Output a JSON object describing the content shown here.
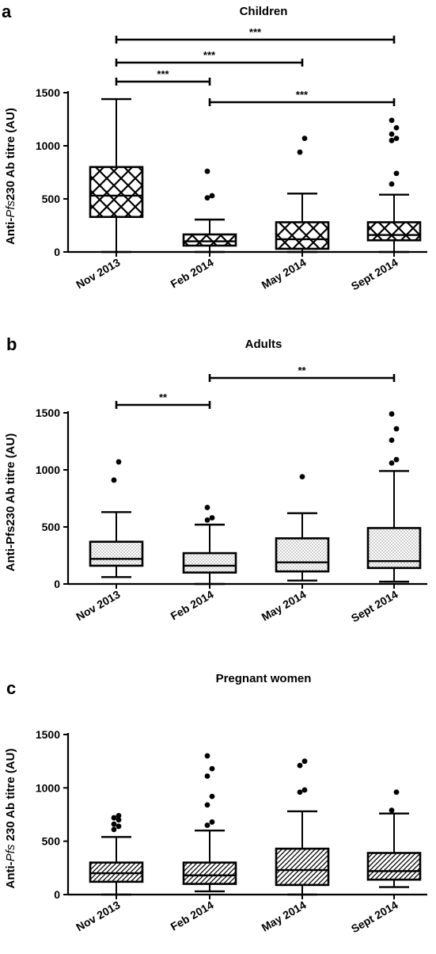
{
  "chart_data": [
    {
      "type": "box",
      "panel_label": "a",
      "title": "Children",
      "ylabel_prefix": "Anti-",
      "ylabel_italic": "Pfs",
      "ylabel_suffix": "230 Ab titre (AU)",
      "ylim": [
        0,
        1500
      ],
      "yticks": [
        0,
        500,
        1000,
        1500
      ],
      "categories": [
        "Nov 2013",
        "Feb 2014",
        "May 2014",
        "Sept 2014"
      ],
      "pattern": "crosshatch",
      "boxes": [
        {
          "whisker_low": 0,
          "q1": 330,
          "median": 530,
          "q3": 800,
          "whisker_high": 1440,
          "outliers": []
        },
        {
          "whisker_low": 0,
          "q1": 60,
          "median": 100,
          "q3": 165,
          "whisker_high": 305,
          "outliers": [
            510,
            530,
            760
          ]
        },
        {
          "whisker_low": 0,
          "q1": 30,
          "median": 120,
          "q3": 280,
          "whisker_high": 550,
          "outliers": [
            940,
            1070
          ]
        },
        {
          "whisker_low": 0,
          "q1": 110,
          "median": 160,
          "q3": 280,
          "whisker_high": 540,
          "outliers": [
            640,
            740,
            1050,
            1070,
            1110,
            1170,
            1240
          ]
        }
      ],
      "significance": [
        {
          "from": 0,
          "to": 3,
          "label": "***",
          "level": 0
        },
        {
          "from": 0,
          "to": 2,
          "label": "***",
          "level": 1
        },
        {
          "from": 0,
          "to": 1,
          "label": "***",
          "level": 2
        },
        {
          "from": 1,
          "to": 3,
          "label": "***",
          "level": 2.2
        }
      ]
    },
    {
      "type": "box",
      "panel_label": "b",
      "title": "Adults",
      "ylabel_prefix": "Anti-Pfs230 Ab titre (AU)",
      "ylabel_italic": "",
      "ylabel_suffix": "",
      "ylim": [
        0,
        1500
      ],
      "yticks": [
        0,
        500,
        1000,
        1500
      ],
      "categories": [
        "Nov 2013",
        "Feb 2014",
        "May 2014",
        "Sept 2014"
      ],
      "pattern": "dots",
      "boxes": [
        {
          "whisker_low": 60,
          "q1": 160,
          "median": 220,
          "q3": 370,
          "whisker_high": 630,
          "outliers": [
            910,
            1070
          ]
        },
        {
          "whisker_low": 0,
          "q1": 100,
          "median": 160,
          "q3": 270,
          "whisker_high": 520,
          "outliers": [
            560,
            580,
            670
          ]
        },
        {
          "whisker_low": 30,
          "q1": 110,
          "median": 190,
          "q3": 400,
          "whisker_high": 620,
          "outliers": [
            940
          ]
        },
        {
          "whisker_low": 20,
          "q1": 140,
          "median": 200,
          "q3": 490,
          "whisker_high": 990,
          "outliers": [
            1060,
            1090,
            1260,
            1360,
            1490
          ]
        }
      ],
      "significance": [
        {
          "from": 1,
          "to": 3,
          "label": "**",
          "level": 0
        },
        {
          "from": 0,
          "to": 1,
          "label": "**",
          "level": 1
        }
      ]
    },
    {
      "type": "box",
      "panel_label": "c",
      "title": "Pregnant women",
      "ylabel_prefix": "Anti-",
      "ylabel_italic": "Pfs",
      "ylabel_suffix": " 230 Ab titre (AU)",
      "ylim": [
        0,
        1500
      ],
      "yticks": [
        0,
        500,
        1000,
        1500
      ],
      "categories": [
        "Nov 2013",
        "Feb 2014",
        "May 2014",
        "Sept 2014"
      ],
      "pattern": "diagonal",
      "boxes": [
        {
          "whisker_low": 0,
          "q1": 120,
          "median": 200,
          "q3": 300,
          "whisker_high": 540,
          "outliers": [
            610,
            640,
            660,
            700,
            720,
            740
          ]
        },
        {
          "whisker_low": 30,
          "q1": 100,
          "median": 180,
          "q3": 300,
          "whisker_high": 600,
          "outliers": [
            650,
            680,
            840,
            920,
            1110,
            1180,
            1300
          ]
        },
        {
          "whisker_low": 0,
          "q1": 90,
          "median": 230,
          "q3": 430,
          "whisker_high": 780,
          "outliers": [
            960,
            980,
            1210,
            1250
          ]
        },
        {
          "whisker_low": 70,
          "q1": 140,
          "median": 220,
          "q3": 390,
          "whisker_high": 760,
          "outliers": [
            790,
            960
          ]
        }
      ],
      "significance": []
    }
  ]
}
